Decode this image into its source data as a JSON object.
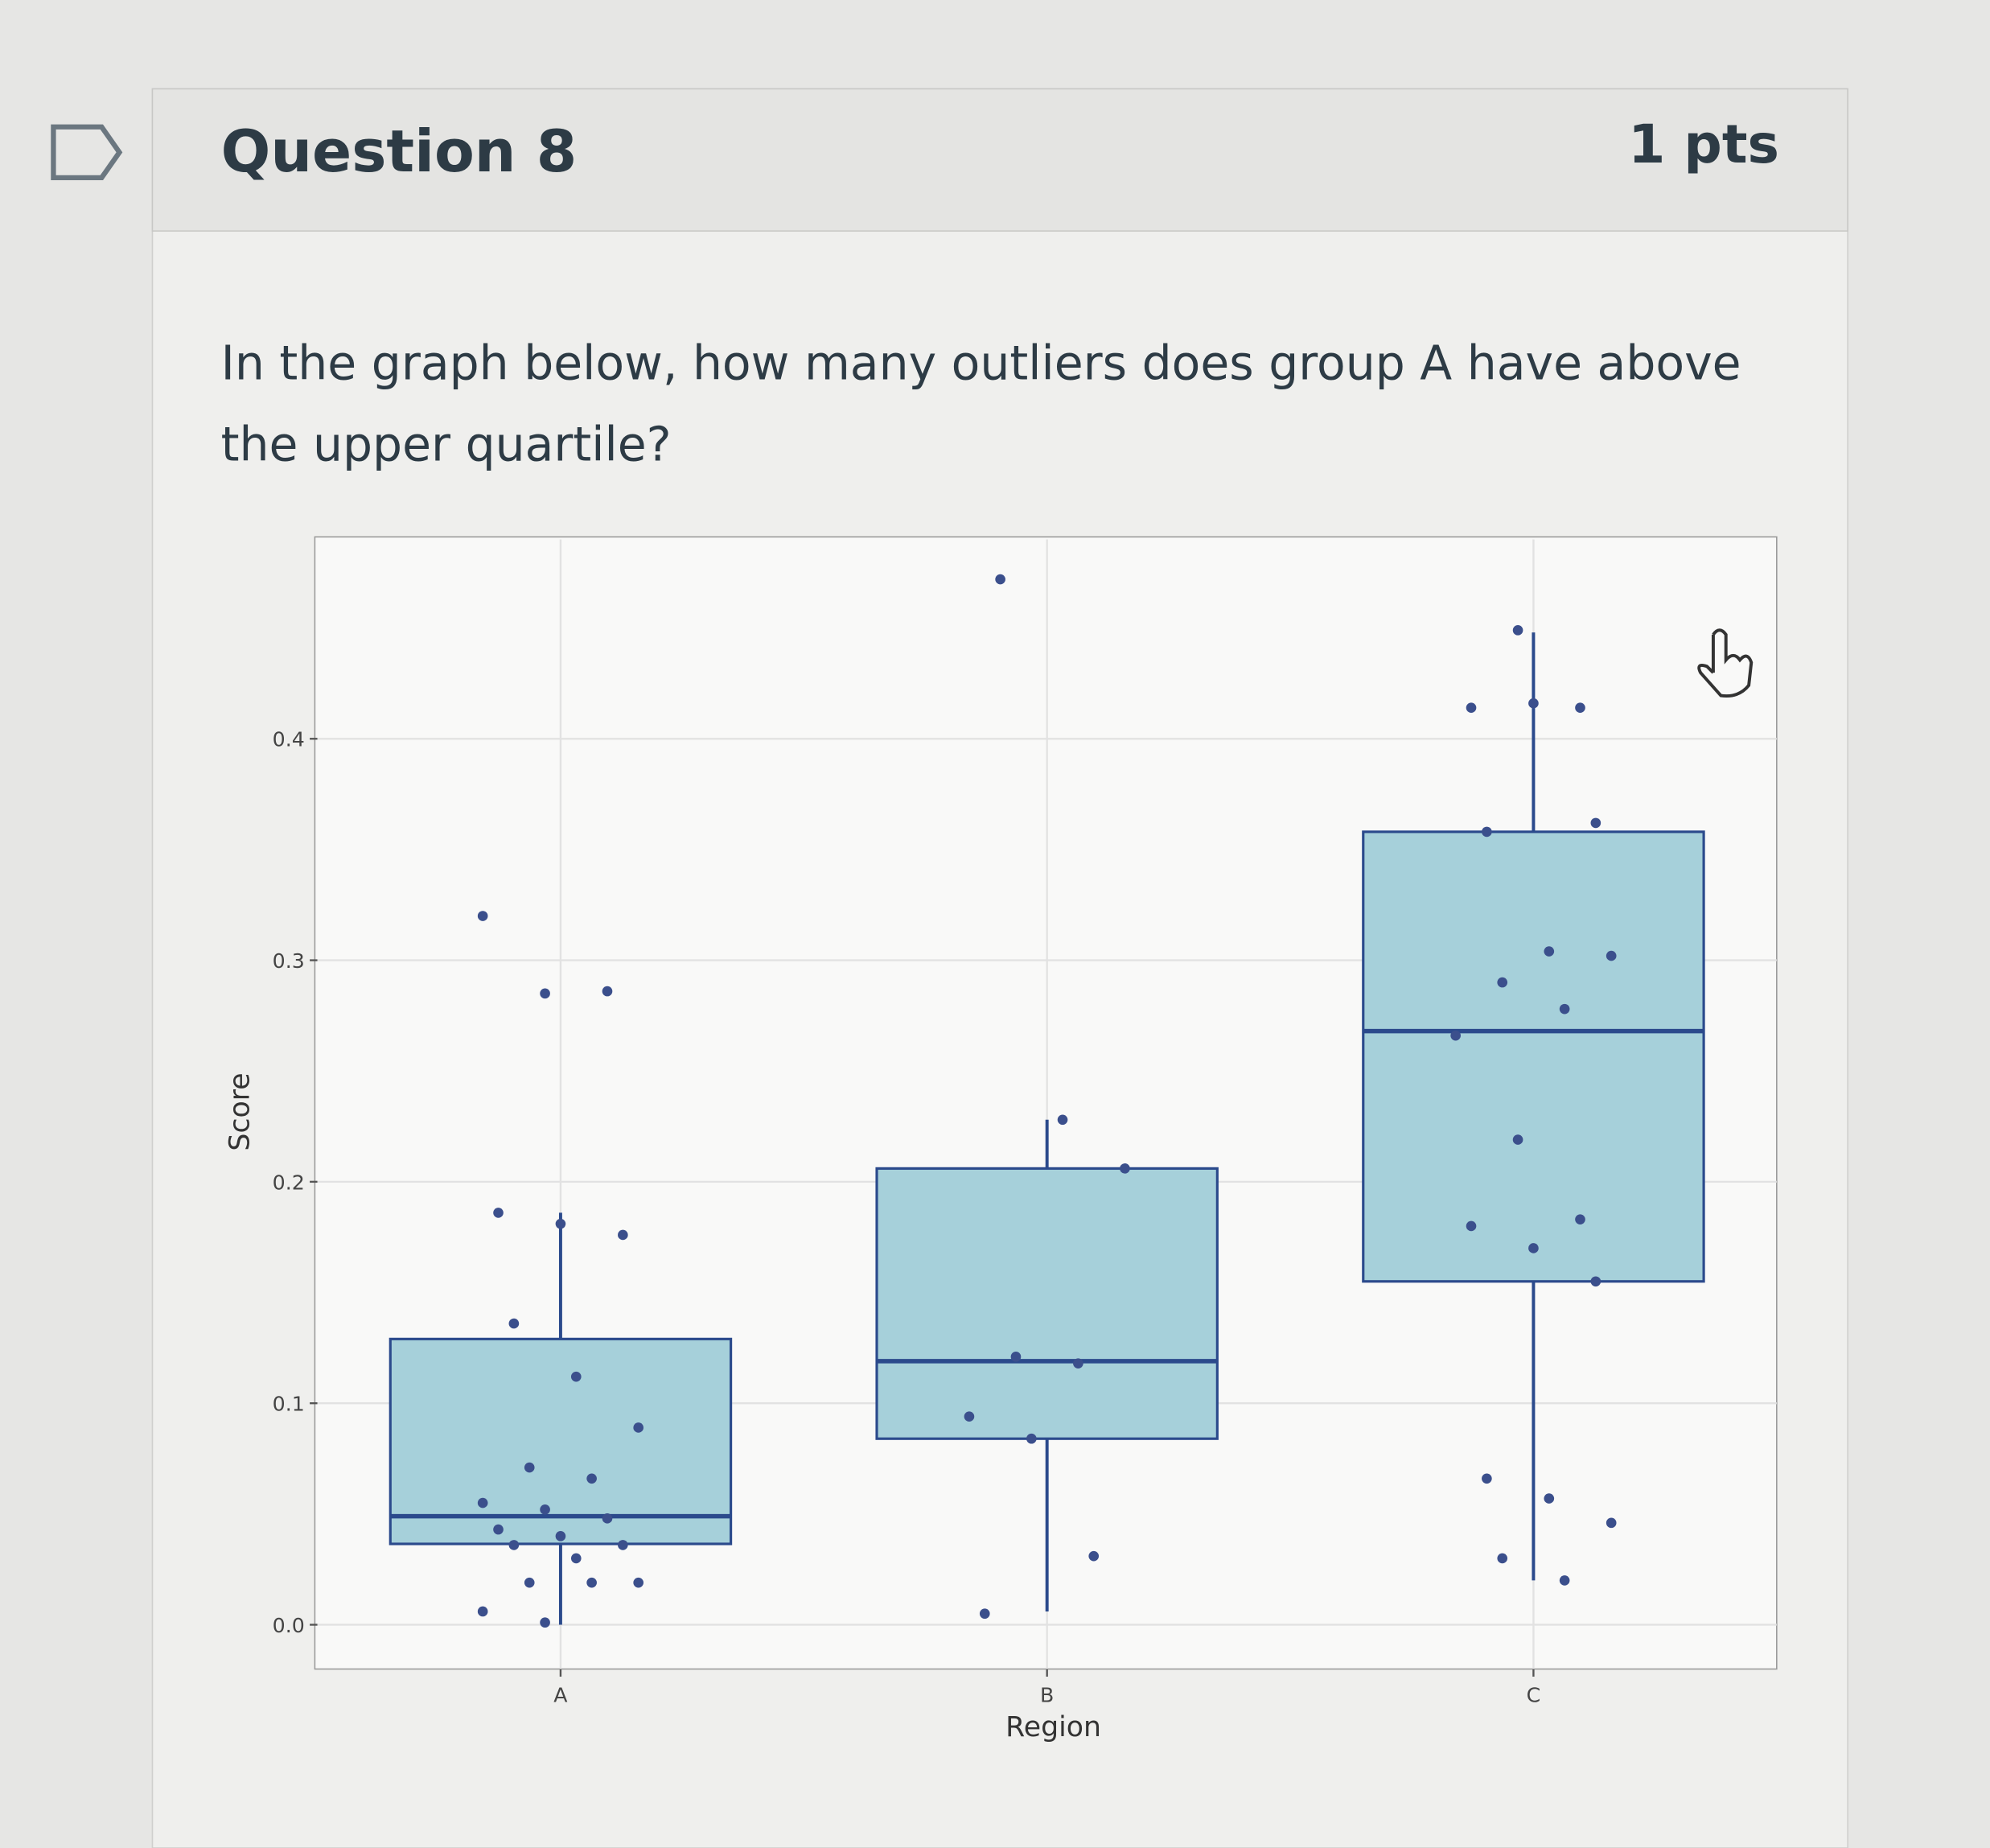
{
  "header": {
    "title": "Question 8",
    "points": "1 pts"
  },
  "question": "In the graph below, how many outliers does group A have above the upper quartile?",
  "chart_data": {
    "type": "box",
    "x_label": "Region",
    "y_label": "Score",
    "categories": [
      "A",
      "B",
      "C"
    ],
    "boxes": [
      {
        "whisker_low": 0.0,
        "q1": 0.0365,
        "median": 0.049,
        "q3": 0.129,
        "whisker_high": 0.186
      },
      {
        "whisker_low": 0.006,
        "q1": 0.084,
        "median": 0.119,
        "q3": 0.206,
        "whisker_high": 0.228
      },
      {
        "whisker_low": 0.02,
        "q1": 0.155,
        "median": 0.268,
        "q3": 0.358,
        "whisker_high": 0.448
      }
    ],
    "points": [
      [
        0.32,
        0.285,
        0.286,
        0.186,
        0.181,
        0.176,
        0.136,
        0.112,
        0.089,
        0.071,
        0.066,
        0.055,
        0.052,
        0.048,
        0.043,
        0.04,
        0.036,
        0.036,
        0.03,
        0.019,
        0.019,
        0.019,
        0.006,
        0.001
      ],
      [
        0.472,
        0.228,
        0.206,
        0.121,
        0.118,
        0.094,
        0.084,
        0.031,
        0.005
      ],
      [
        0.449,
        0.414,
        0.414,
        0.416,
        0.362,
        0.358,
        0.304,
        0.302,
        0.29,
        0.278,
        0.266,
        0.219,
        0.183,
        0.18,
        0.17,
        0.155,
        0.066,
        0.057,
        0.046,
        0.03,
        0.02
      ]
    ],
    "ylim": [
      -0.02,
      0.49
    ],
    "yticks": [
      {
        "value": 0,
        "label": "0.0"
      },
      0.1,
      0.2,
      0.3,
      0.4
    ],
    "grid": true,
    "box_color": "#a6d0da",
    "line_color": "#2b4a8c",
    "point_color": "#3b4f8c"
  }
}
